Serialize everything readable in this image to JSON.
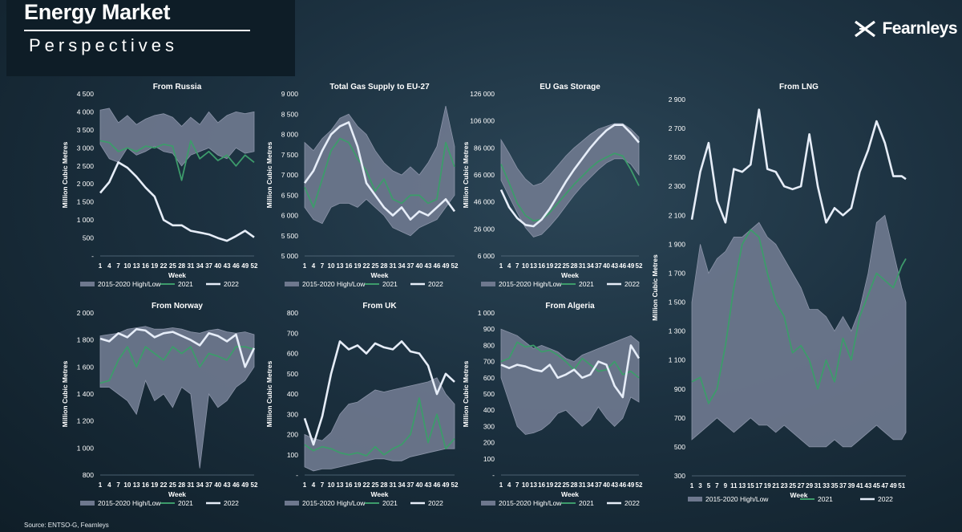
{
  "brand": {
    "title": "Energy Market",
    "subtitle": "Perspectives",
    "logo": "Fearnleys",
    "logo_icon": "x-arrows-icon"
  },
  "source": "Source: ENTSO-G, Fearnleys",
  "colors": {
    "band": "#6e788e",
    "band_edge": "#8b94a8",
    "y2021": "#3d9b6b",
    "y2022": "#e6edf8"
  },
  "chart_data": [
    {
      "type": "area",
      "title": "From Russia",
      "ylabel": "Million Cubic Metres",
      "xlabel": "Week",
      "ylim": [
        0,
        4500
      ],
      "yticks": [
        "-",
        "500",
        "1 000",
        "1 500",
        "2 000",
        "2 500",
        "3 000",
        "3 500",
        "4 000",
        "4 500"
      ],
      "xticks": [
        "1",
        "4",
        "7",
        "10",
        "13",
        "16",
        "19",
        "22",
        "25",
        "28",
        "31",
        "34",
        "37",
        "40",
        "43",
        "46",
        "49",
        "52"
      ],
      "legend": [
        "2015-2020 High/Low",
        "2021",
        "2022"
      ],
      "x": [
        1,
        4,
        7,
        10,
        13,
        16,
        19,
        22,
        25,
        28,
        31,
        34,
        37,
        40,
        43,
        46,
        49,
        52
      ],
      "band_high": [
        4050,
        4100,
        3700,
        3900,
        3650,
        3800,
        3900,
        3950,
        3850,
        3600,
        3850,
        3650,
        4000,
        3700,
        3900,
        4000,
        3950,
        4000
      ],
      "band_low": [
        3100,
        2700,
        2600,
        3000,
        2800,
        2900,
        3050,
        2900,
        2850,
        2500,
        2800,
        2900,
        3000,
        2800,
        2700,
        3000,
        2850,
        2900
      ],
      "series": [
        {
          "name": "2021",
          "values": [
            3200,
            3150,
            2900,
            3000,
            2900,
            3050,
            3000,
            3100,
            3050,
            2100,
            3200,
            2700,
            2900,
            2650,
            2800,
            2500,
            2800,
            2600
          ]
        },
        {
          "name": "2022",
          "values": [
            1750,
            2050,
            2600,
            2450,
            2200,
            1900,
            1650,
            1000,
            850,
            850,
            700,
            650,
            600,
            500,
            420,
            550,
            700,
            520
          ]
        }
      ]
    },
    {
      "type": "area",
      "title": "Total Gas Supply to EU-27",
      "ylabel": "Million Cubic Metres",
      "xlabel": "Week",
      "ylim": [
        5000,
        9000
      ],
      "yticks": [
        "5 000",
        "5 500",
        "6 000",
        "6 500",
        "7 000",
        "7 500",
        "8 000",
        "8 500",
        "9 000"
      ],
      "xticks": [
        "1",
        "4",
        "7",
        "10",
        "13",
        "16",
        "19",
        "22",
        "25",
        "28",
        "31",
        "34",
        "37",
        "40",
        "43",
        "46",
        "49",
        "52"
      ],
      "legend": [
        "2015-2020 High/Low",
        "2021",
        "2022"
      ],
      "x": [
        1,
        4,
        7,
        10,
        13,
        16,
        19,
        22,
        25,
        28,
        31,
        34,
        37,
        40,
        43,
        46,
        49,
        52
      ],
      "band_high": [
        7800,
        7600,
        7900,
        8100,
        8400,
        8500,
        8200,
        8000,
        7600,
        7300,
        7100,
        7000,
        7200,
        7000,
        7300,
        7700,
        8700,
        7700
      ],
      "band_low": [
        6200,
        5900,
        5800,
        6200,
        6300,
        6300,
        6200,
        6400,
        6200,
        6000,
        5700,
        5600,
        5500,
        5700,
        5800,
        5900,
        6200,
        6500
      ],
      "series": [
        {
          "name": "2021",
          "values": [
            6700,
            6200,
            6900,
            7600,
            7900,
            7800,
            7400,
            7100,
            6600,
            6900,
            6400,
            6300,
            6500,
            6500,
            6300,
            6400,
            7800,
            7200
          ]
        },
        {
          "name": "2022",
          "values": [
            6800,
            7100,
            7600,
            8000,
            8200,
            8300,
            7700,
            6800,
            6500,
            6200,
            6000,
            6200,
            5900,
            6100,
            6000,
            6200,
            6400,
            6100
          ]
        }
      ]
    },
    {
      "type": "area",
      "title": "EU Gas Storage",
      "ylabel": "Million Cubic Metres",
      "xlabel": "Week",
      "ylim": [
        6000,
        126000
      ],
      "yticks": [
        "6 000",
        "26 000",
        "46 000",
        "66 000",
        "86 000",
        "106 000",
        "126 000"
      ],
      "xticks": [
        "1",
        "4",
        "7",
        "10",
        "13",
        "16",
        "19",
        "22",
        "25",
        "28",
        "31",
        "34",
        "37",
        "40",
        "43",
        "46",
        "49",
        "52"
      ],
      "legend": [
        "2015-2020 High/Low",
        "2021",
        "2022"
      ],
      "x": [
        1,
        4,
        7,
        10,
        13,
        16,
        19,
        22,
        25,
        28,
        31,
        34,
        37,
        40,
        43,
        46,
        49,
        52
      ],
      "band_high": [
        92000,
        82000,
        71000,
        63000,
        58000,
        60000,
        66000,
        73000,
        80000,
        86000,
        91000,
        96000,
        100000,
        102000,
        104000,
        104000,
        100000,
        94000
      ],
      "band_low": [
        62000,
        50000,
        38000,
        27000,
        20000,
        22000,
        28000,
        35000,
        43000,
        51000,
        58000,
        64000,
        70000,
        75000,
        78000,
        78000,
        74000,
        66000
      ],
      "series": [
        {
          "name": "2021",
          "values": [
            74000,
            60000,
            45000,
            36000,
            32000,
            33000,
            38000,
            45000,
            52000,
            59000,
            65000,
            71000,
            76000,
            79000,
            82000,
            80000,
            70000,
            58000
          ]
        },
        {
          "name": "2022",
          "values": [
            55000,
            42000,
            34000,
            29000,
            28000,
            33000,
            41000,
            51000,
            61000,
            70000,
            78000,
            86000,
            93000,
            99000,
            103000,
            103000,
            97000,
            90000
          ]
        }
      ]
    },
    {
      "type": "area",
      "title": "From LNG",
      "ylabel": "Million Cubic Metres",
      "xlabel": "Week",
      "ylim": [
        300,
        2900
      ],
      "yticks": [
        "300",
        "500",
        "700",
        "900",
        "1 100",
        "1 300",
        "1 500",
        "1 700",
        "1 900",
        "2 100",
        "2 300",
        "2 500",
        "2 700",
        "2 900"
      ],
      "xticks": [
        "1",
        "3",
        "5",
        "7",
        "9",
        "11",
        "13",
        "15",
        "17",
        "19",
        "21",
        "23",
        "25",
        "27",
        "29",
        "31",
        "33",
        "35",
        "37",
        "39",
        "41",
        "43",
        "45",
        "47",
        "49",
        "51"
      ],
      "legend": [
        "2015-2020 High/Low",
        "2021",
        "2022"
      ],
      "x": [
        1,
        3,
        5,
        7,
        9,
        11,
        13,
        15,
        17,
        19,
        21,
        23,
        25,
        27,
        29,
        31,
        33,
        35,
        37,
        39,
        41,
        43,
        45,
        47,
        49,
        51,
        52
      ],
      "band_high": [
        1500,
        1900,
        1700,
        1800,
        1850,
        1950,
        1950,
        2000,
        2050,
        1950,
        1900,
        1800,
        1700,
        1600,
        1450,
        1450,
        1400,
        1300,
        1400,
        1300,
        1450,
        1700,
        2050,
        2100,
        1850,
        1600,
        1500
      ],
      "band_low": [
        550,
        600,
        650,
        700,
        650,
        600,
        650,
        700,
        650,
        650,
        600,
        650,
        600,
        550,
        500,
        500,
        500,
        550,
        500,
        500,
        550,
        600,
        650,
        600,
        550,
        550,
        600
      ],
      "series": [
        {
          "name": "2021",
          "values": [
            950,
            980,
            800,
            900,
            1200,
            1600,
            1900,
            2000,
            1950,
            1700,
            1500,
            1400,
            1150,
            1200,
            1100,
            900,
            1100,
            950,
            1250,
            1100,
            1400,
            1550,
            1700,
            1650,
            1600,
            1750,
            1800
          ]
        },
        {
          "name": "2022",
          "values": [
            2070,
            2400,
            2600,
            2200,
            2050,
            2420,
            2400,
            2450,
            2830,
            2420,
            2400,
            2300,
            2280,
            2300,
            2660,
            2300,
            2050,
            2150,
            2100,
            2150,
            2400,
            2550,
            2750,
            2600,
            2370,
            2370,
            2350
          ]
        }
      ]
    },
    {
      "type": "area",
      "title": "From Norway",
      "ylabel": "Million Cubic Metres",
      "xlabel": "Week",
      "ylim": [
        800,
        2000
      ],
      "yticks": [
        "800",
        "1 000",
        "1 200",
        "1 400",
        "1 600",
        "1 800",
        "2 000"
      ],
      "xticks": [
        "1",
        "4",
        "7",
        "10",
        "13",
        "16",
        "19",
        "22",
        "25",
        "28",
        "31",
        "34",
        "37",
        "40",
        "43",
        "46",
        "49",
        "52"
      ],
      "legend": [
        "2015-2020 High/Low",
        "2021",
        "2022"
      ],
      "x": [
        1,
        4,
        7,
        10,
        13,
        16,
        19,
        22,
        25,
        28,
        31,
        34,
        37,
        40,
        43,
        46,
        49,
        52
      ],
      "band_high": [
        1830,
        1840,
        1850,
        1880,
        1890,
        1900,
        1880,
        1880,
        1890,
        1880,
        1860,
        1850,
        1870,
        1880,
        1860,
        1850,
        1860,
        1840
      ],
      "band_low": [
        1450,
        1450,
        1400,
        1350,
        1250,
        1500,
        1350,
        1400,
        1300,
        1450,
        1400,
        850,
        1400,
        1300,
        1350,
        1450,
        1500,
        1600
      ],
      "series": [
        {
          "name": "2021",
          "values": [
            1480,
            1500,
            1650,
            1750,
            1600,
            1750,
            1700,
            1650,
            1750,
            1700,
            1750,
            1600,
            1700,
            1680,
            1650,
            1750,
            1750,
            1730
          ]
        },
        {
          "name": "2022",
          "values": [
            1810,
            1790,
            1850,
            1820,
            1880,
            1870,
            1820,
            1850,
            1860,
            1830,
            1800,
            1760,
            1850,
            1830,
            1790,
            1840,
            1600,
            1740
          ]
        }
      ]
    },
    {
      "type": "area",
      "title": "From UK",
      "ylabel": "Million Cubic Metres",
      "xlabel": "Week",
      "ylim": [
        0,
        800
      ],
      "yticks": [
        "-",
        "100",
        "200",
        "300",
        "400",
        "500",
        "600",
        "700",
        "800"
      ],
      "xticks": [
        "1",
        "4",
        "7",
        "10",
        "13",
        "16",
        "19",
        "22",
        "25",
        "28",
        "31",
        "34",
        "37",
        "40",
        "43",
        "46",
        "49",
        "52"
      ],
      "legend": [
        "2015-2020 High/Low",
        "2021",
        "2022"
      ],
      "x": [
        1,
        4,
        7,
        10,
        13,
        16,
        19,
        22,
        25,
        28,
        31,
        34,
        37,
        40,
        43,
        46,
        49,
        52
      ],
      "band_high": [
        200,
        180,
        170,
        210,
        300,
        350,
        360,
        390,
        420,
        410,
        420,
        430,
        440,
        450,
        460,
        480,
        400,
        350
      ],
      "band_low": [
        40,
        20,
        30,
        30,
        40,
        50,
        60,
        70,
        80,
        80,
        70,
        70,
        90,
        100,
        110,
        120,
        130,
        130
      ],
      "series": [
        {
          "name": "2021",
          "values": [
            150,
            120,
            140,
            130,
            110,
            100,
            110,
            95,
            140,
            100,
            130,
            150,
            200,
            380,
            160,
            300,
            130,
            180
          ]
        },
        {
          "name": "2022",
          "values": [
            280,
            150,
            290,
            500,
            660,
            620,
            640,
            600,
            650,
            630,
            620,
            660,
            610,
            600,
            540,
            400,
            500,
            460
          ]
        }
      ]
    },
    {
      "type": "area",
      "title": "From Algeria",
      "ylabel": "Million Cubic Metres",
      "xlabel": "Week",
      "ylim": [
        0,
        1000
      ],
      "yticks": [
        "-",
        "100",
        "200",
        "300",
        "400",
        "500",
        "600",
        "700",
        "800",
        "900",
        "1 000"
      ],
      "xticks": [
        "1",
        "4",
        "7",
        "10",
        "13",
        "16",
        "19",
        "22",
        "25",
        "28",
        "31",
        "34",
        "37",
        "40",
        "43",
        "46",
        "49",
        "52"
      ],
      "legend": [
        "2015-2020 High/Low",
        "2021",
        "2022"
      ],
      "x": [
        1,
        4,
        7,
        10,
        13,
        16,
        19,
        22,
        25,
        28,
        31,
        34,
        37,
        40,
        43,
        46,
        49,
        52
      ],
      "band_high": [
        900,
        880,
        860,
        820,
        780,
        800,
        780,
        760,
        720,
        700,
        740,
        760,
        780,
        800,
        820,
        840,
        860,
        820
      ],
      "band_low": [
        600,
        450,
        300,
        250,
        260,
        280,
        320,
        380,
        400,
        350,
        300,
        340,
        420,
        350,
        300,
        350,
        480,
        450
      ],
      "series": [
        {
          "name": "2021",
          "values": [
            700,
            720,
            820,
            790,
            800,
            760,
            770,
            740,
            700,
            650,
            720,
            680,
            640,
            650,
            700,
            620,
            640,
            600
          ]
        },
        {
          "name": "2022",
          "values": [
            680,
            660,
            680,
            670,
            650,
            640,
            680,
            600,
            620,
            650,
            600,
            620,
            700,
            680,
            550,
            480,
            800,
            720
          ]
        }
      ]
    }
  ]
}
